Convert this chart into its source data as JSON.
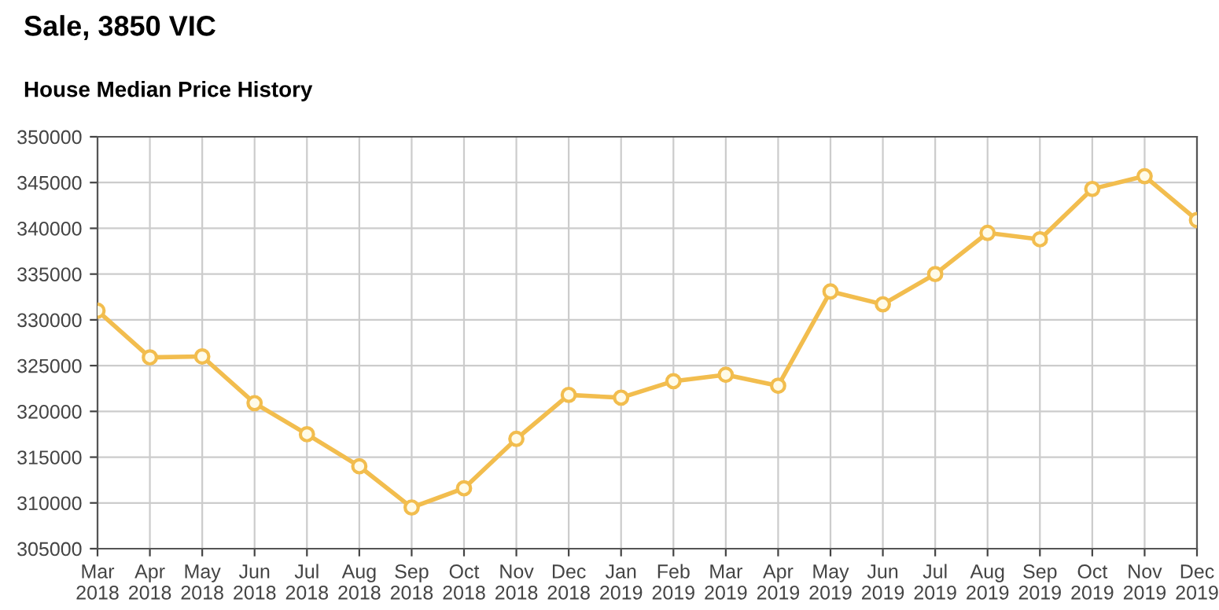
{
  "chart_data": {
    "type": "line",
    "title": "Sale, 3850 VIC",
    "subtitle": "House Median Price History",
    "categories": [
      "Mar\n2018",
      "Apr\n2018",
      "May\n2018",
      "Jun\n2018",
      "Jul\n2018",
      "Aug\n2018",
      "Sep\n2018",
      "Oct\n2018",
      "Nov\n2018",
      "Dec\n2018",
      "Jan\n2019",
      "Feb\n2019",
      "Mar\n2019",
      "Apr\n2019",
      "May\n2019",
      "Jun\n2019",
      "Jul\n2019",
      "Aug\n2019",
      "Sep\n2019",
      "Oct\n2019",
      "Nov\n2019",
      "Dec\n2019"
    ],
    "series": [
      {
        "color": "#f2bd4e",
        "values": [
          331000,
          325900,
          326000,
          320900,
          317500,
          314000,
          309500,
          311600,
          317000,
          321800,
          321500,
          323300,
          324000,
          322800,
          333100,
          331700,
          335000,
          339500,
          338800,
          344300,
          345700,
          340900
        ]
      }
    ],
    "ylim": [
      305000,
      350000
    ],
    "yticks": [
      305000,
      310000,
      315000,
      320000,
      325000,
      330000,
      335000,
      340000,
      345000,
      350000
    ],
    "grid": true,
    "marker": "circle",
    "line_style": "solid",
    "legend": false
  }
}
